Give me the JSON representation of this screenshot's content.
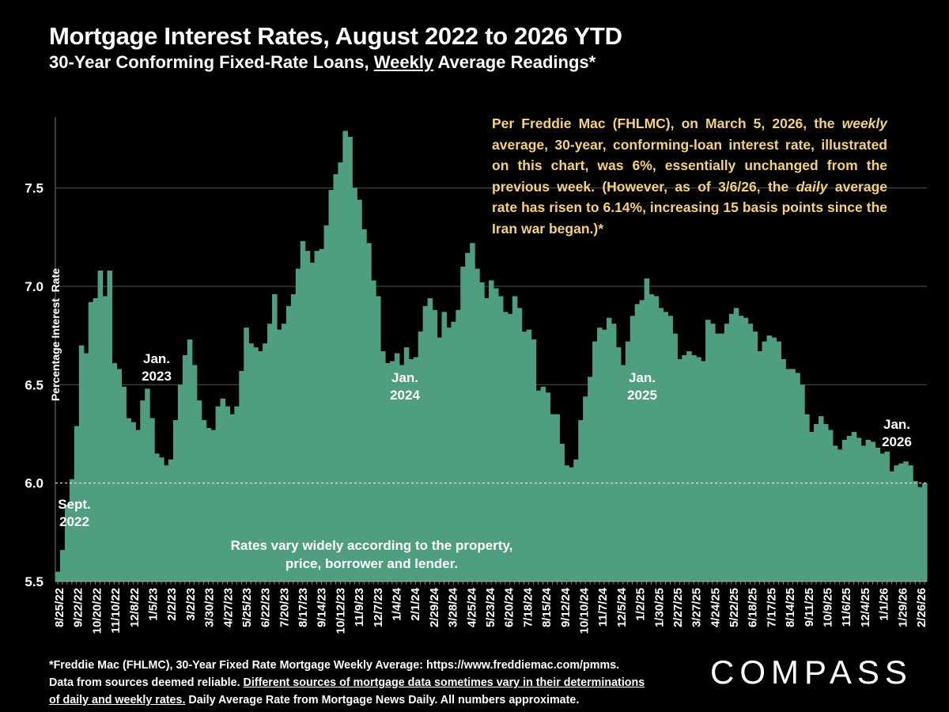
{
  "title": "Mortgage Interest Rates, August 2022 to 2026 YTD",
  "subtitle_pre": "30-Year Conforming Fixed-Rate Loans, ",
  "subtitle_u": "Weekly",
  "subtitle_post": " Average Readings*",
  "annotation": {
    "p1": "Per Freddie Mac (FHLMC), on March 5, 2026, the ",
    "i1": "weekly",
    "p2": " average, 30-year, conforming-loan interest rate, illustrated on this chart, was 6%, essentially unchanged from the previous week. (However, as of 3/6/26, the ",
    "i2": "daily",
    "p3": " average rate has risen to 6.14%, increasing 15 basis points since the Iran war began.)*"
  },
  "chart_labels": {
    "sept2022": [
      "Sept.",
      "2022"
    ],
    "jan2023": [
      "Jan.",
      "2023"
    ],
    "jan2024": [
      "Jan.",
      "2024"
    ],
    "jan2025": [
      "Jan.",
      "2025"
    ],
    "jan2026": [
      "Jan.",
      "2026"
    ],
    "inside_note": [
      "Rates vary widely according to the property,",
      "price, borrower and lender."
    ]
  },
  "footer": {
    "l1": "*Freddie Mac (FHLMC), 30-Year Fixed Rate Mortgage Weekly Average:  https://www.freddiemac.com/pmms.",
    "l2a": "Data from sources deemed reliable. ",
    "l2u": "Different sources of mortgage data sometimes vary in their determinations",
    "l3u": "of daily and weekly rates.",
    "l3b": " Daily Average Rate from Mortgage News Daily. All numbers approximate."
  },
  "logo": "COMPASS",
  "colors": {
    "fill": "#4f9e80",
    "background": "#000000",
    "annotation": "#f5d27a"
  },
  "chart_data": {
    "type": "area",
    "ylabel": "Percentage Interest  Rate",
    "ylim": [
      5.5,
      7.8
    ],
    "yticks": [
      "5.5",
      "6.0",
      "6.5",
      "7.0",
      "7.5"
    ],
    "reference_line": 6.0,
    "grid": true,
    "xtick_labels": [
      "8/25/22",
      "9/22/22",
      "10/20/22",
      "11/10/22",
      "12/8/22",
      "1/5/23",
      "2/2/23",
      "3/2/23",
      "3/30/23",
      "4/27/23",
      "5/25/23",
      "6/22/23",
      "7/20/23",
      "8/17/23",
      "9/14/23",
      "10/12/23",
      "11/9/23",
      "12/7/23",
      "1/4/24",
      "2/1/24",
      "2/29/24",
      "3/28/24",
      "4/25/24",
      "5/23/24",
      "6/20/24",
      "7/18/24",
      "8/15/24",
      "9/12/24",
      "10/10/24",
      "11/7/24",
      "12/5/24",
      "1/2/25",
      "1/30/25",
      "2/27/25",
      "3/27/25",
      "4/24/25",
      "5/22/25",
      "6/18/25",
      "7/17/25",
      "8/14/25",
      "9/11/25",
      "10/9/25",
      "11/6/25",
      "12/4/25",
      "1/1/26",
      "1/29/26",
      "2/26/26"
    ],
    "values": [
      5.55,
      5.66,
      5.89,
      6.02,
      6.29,
      6.7,
      6.66,
      6.92,
      6.94,
      7.08,
      6.95,
      7.08,
      6.61,
      6.58,
      6.49,
      6.33,
      6.31,
      6.27,
      6.42,
      6.48,
      6.33,
      6.15,
      6.13,
      6.09,
      6.12,
      6.32,
      6.5,
      6.65,
      6.73,
      6.6,
      6.42,
      6.32,
      6.28,
      6.27,
      6.39,
      6.43,
      6.39,
      6.35,
      6.39,
      6.57,
      6.79,
      6.71,
      6.69,
      6.67,
      6.71,
      6.81,
      6.96,
      6.78,
      6.81,
      6.9,
      6.96,
      7.09,
      7.23,
      7.18,
      7.12,
      7.18,
      7.19,
      7.31,
      7.49,
      7.57,
      7.63,
      7.79,
      7.76,
      7.5,
      7.44,
      7.29,
      7.22,
      7.03,
      6.95,
      6.67,
      6.61,
      6.62,
      6.66,
      6.6,
      6.69,
      6.63,
      6.64,
      6.77,
      6.9,
      6.94,
      6.88,
      6.74,
      6.87,
      6.79,
      6.82,
      6.88,
      7.1,
      7.17,
      7.22,
      7.09,
      7.02,
      6.94,
      7.03,
      6.99,
      6.95,
      6.87,
      6.86,
      6.95,
      6.89,
      6.77,
      6.78,
      6.73,
      6.47,
      6.49,
      6.46,
      6.35,
      6.35,
      6.2,
      6.09,
      6.08,
      6.12,
      6.32,
      6.44,
      6.54,
      6.72,
      6.79,
      6.78,
      6.84,
      6.81,
      6.69,
      6.6,
      6.72,
      6.85,
      6.91,
      6.93,
      7.04,
      6.96,
      6.95,
      6.89,
      6.87,
      6.85,
      6.76,
      6.63,
      6.65,
      6.67,
      6.65,
      6.64,
      6.62,
      6.83,
      6.81,
      6.76,
      6.76,
      6.81,
      6.86,
      6.89,
      6.85,
      6.84,
      6.81,
      6.77,
      6.67,
      6.72,
      6.75,
      6.74,
      6.72,
      6.63,
      6.58,
      6.58,
      6.56,
      6.5,
      6.35,
      6.26,
      6.3,
      6.34,
      6.3,
      6.27,
      6.19,
      6.17,
      6.22,
      6.24,
      6.26,
      6.23,
      6.19,
      6.22,
      6.21,
      6.18,
      6.15,
      6.16,
      6.06,
      6.09,
      6.1,
      6.11,
      6.09,
      6.01,
      5.98,
      6.0
    ]
  }
}
